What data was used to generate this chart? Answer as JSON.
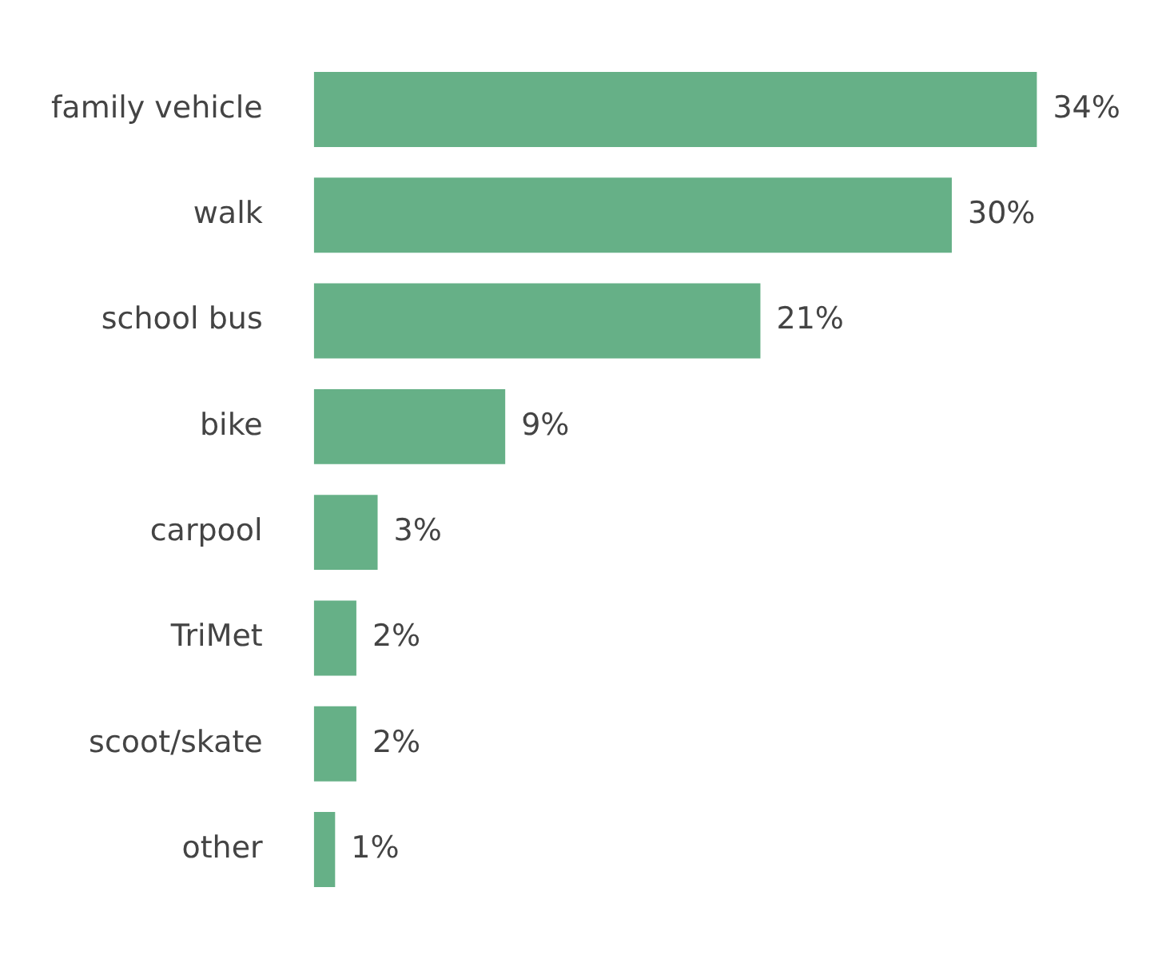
{
  "chart_data": {
    "type": "bar",
    "orientation": "horizontal",
    "categories": [
      "family vehicle",
      "walk",
      "school bus",
      "bike",
      "carpool",
      "TriMet",
      "scoot/skate",
      "other"
    ],
    "values": [
      34,
      30,
      21,
      9,
      3,
      2,
      2,
      1
    ],
    "value_labels": [
      "34%",
      "30%",
      "21%",
      "9%",
      "3%",
      "2%",
      "2%",
      "1%"
    ],
    "color": "#66b087",
    "legend": false
  }
}
